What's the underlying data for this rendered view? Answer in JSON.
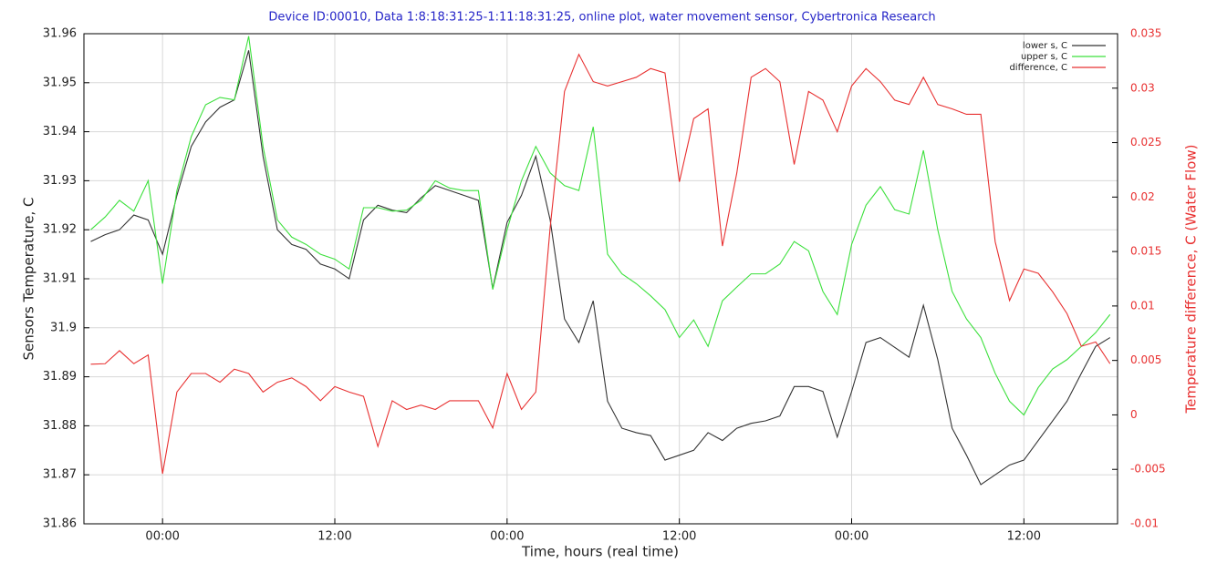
{
  "chart_data": {
    "type": "line",
    "title": "Device ID:00010, Data 1:8:18:31:25-1:11:18:31:25, online plot, water movement sensor, Cybertronica Research",
    "x_label": "Time, hours (real time)",
    "y_label": "Sensors Temperature, C",
    "y2_label": "Temperature difference, C (Water Flow)",
    "xlim": [
      -5.476,
      66.524
    ],
    "xticks": [
      {
        "value": 0,
        "label": "00:00"
      },
      {
        "value": 12,
        "label": "12:00"
      },
      {
        "value": 24,
        "label": "00:00"
      },
      {
        "value": 36,
        "label": "12:00"
      },
      {
        "value": 48,
        "label": "00:00"
      },
      {
        "value": 60,
        "label": "12:00"
      }
    ],
    "ylim": [
      31.86,
      31.96
    ],
    "yticks": [
      31.86,
      31.87,
      31.88,
      31.89,
      31.9,
      31.91,
      31.92,
      31.93,
      31.94,
      31.95,
      31.96
    ],
    "y2lim": [
      -0.01,
      0.035
    ],
    "y2ticks": [
      -0.01,
      -0.005,
      0,
      0.005,
      0.01,
      0.015,
      0.02,
      0.025,
      0.03,
      0.035
    ],
    "grid": true,
    "legend": "upper right",
    "title_color": "#2626c8",
    "y2_color": "#e83030",
    "x": [
      -5,
      -4,
      -3,
      -2,
      -1,
      0,
      1,
      2,
      3,
      4,
      5,
      6,
      7,
      8,
      9,
      10,
      11,
      12,
      13,
      14,
      15,
      16,
      17,
      18,
      19,
      20,
      21,
      22,
      23,
      24,
      25,
      26,
      27,
      28,
      29,
      30,
      31,
      32,
      33,
      34,
      35,
      36,
      37,
      38,
      39,
      40,
      41,
      42,
      43,
      44,
      45,
      46,
      47,
      48,
      49,
      50,
      51,
      52,
      53,
      54,
      55,
      56,
      57,
      58,
      59,
      60,
      61,
      62,
      63,
      64,
      65,
      66
    ],
    "series": [
      {
        "name": "lower s, C",
        "color": "#333333",
        "values": [
          31.9176,
          31.919,
          31.92,
          31.923,
          31.922,
          31.915,
          31.927,
          31.937,
          31.942,
          31.945,
          31.9465,
          31.9566,
          31.935,
          31.92,
          31.917,
          31.916,
          31.913,
          31.912,
          31.91,
          31.922,
          31.925,
          31.924,
          31.9235,
          31.9265,
          31.929,
          31.928,
          31.927,
          31.926,
          31.908,
          31.9215,
          31.927,
          31.935,
          31.922,
          31.9018,
          31.897,
          31.9055,
          31.885,
          31.8795,
          31.8786,
          31.878,
          31.873,
          31.874,
          31.875,
          31.8786,
          31.877,
          31.8795,
          31.8805,
          31.881,
          31.882,
          31.888,
          31.888,
          31.887,
          31.8777,
          31.887,
          31.897,
          31.898,
          31.896,
          31.894,
          31.9046,
          31.8935,
          31.8795,
          31.874,
          31.868,
          31.87,
          31.872,
          31.873,
          31.877,
          31.881,
          31.885,
          31.8907,
          31.8962,
          31.898
        ]
      },
      {
        "name": "upper s, C",
        "color": "#3ce03c",
        "values": [
          31.92,
          31.9226,
          31.926,
          31.9238,
          31.93,
          31.909,
          31.928,
          31.939,
          31.9455,
          31.947,
          31.9465,
          31.9595,
          31.937,
          31.922,
          31.9185,
          31.917,
          31.915,
          31.914,
          31.912,
          31.9245,
          31.9245,
          31.9238,
          31.924,
          31.926,
          31.93,
          31.9285,
          31.928,
          31.928,
          31.9078,
          31.92,
          31.93,
          31.937,
          31.9316,
          31.929,
          31.928,
          31.941,
          31.915,
          31.911,
          31.909,
          31.9065,
          31.9037,
          31.898,
          31.9016,
          31.8962,
          31.9055,
          31.9083,
          31.911,
          31.911,
          31.913,
          31.9176,
          31.9157,
          31.9074,
          31.9027,
          31.917,
          31.925,
          31.9288,
          31.9241,
          31.9232,
          31.9362,
          31.92,
          31.9074,
          31.9018,
          31.898,
          31.8907,
          31.885,
          31.8822,
          31.8878,
          31.8916,
          31.8935,
          31.8962,
          31.899,
          31.9027
        ]
      },
      {
        "name": "difference, C",
        "color": "#e83030",
        "axis": "y2",
        "values": [
          0.00465,
          0.0047,
          0.0059,
          0.0047,
          0.0055,
          -0.0054,
          0.0021,
          0.0038,
          0.0038,
          0.003,
          0.0042,
          0.0038,
          0.0021,
          0.003,
          0.0034,
          0.0026,
          0.0013,
          0.0026,
          0.0021,
          0.0017,
          -0.0029,
          0.0013,
          0.0005,
          0.0009,
          0.0005,
          0.0013,
          0.0013,
          0.0013,
          -0.0012,
          0.0038,
          0.0005,
          0.0021,
          0.0172,
          0.0297,
          0.0331,
          0.0306,
          0.0302,
          0.0306,
          0.031,
          0.0318,
          0.0314,
          0.0214,
          0.0272,
          0.0281,
          0.0155,
          0.0222,
          0.031,
          0.0318,
          0.0306,
          0.023,
          0.0297,
          0.0289,
          0.026,
          0.0302,
          0.0318,
          0.0306,
          0.0289,
          0.0285,
          0.031,
          0.0285,
          0.0281,
          0.0276,
          0.0276,
          0.0159,
          0.0105,
          0.0134,
          0.013,
          0.0113,
          0.0093,
          0.0063,
          0.0067,
          0.0047
        ]
      }
    ]
  }
}
